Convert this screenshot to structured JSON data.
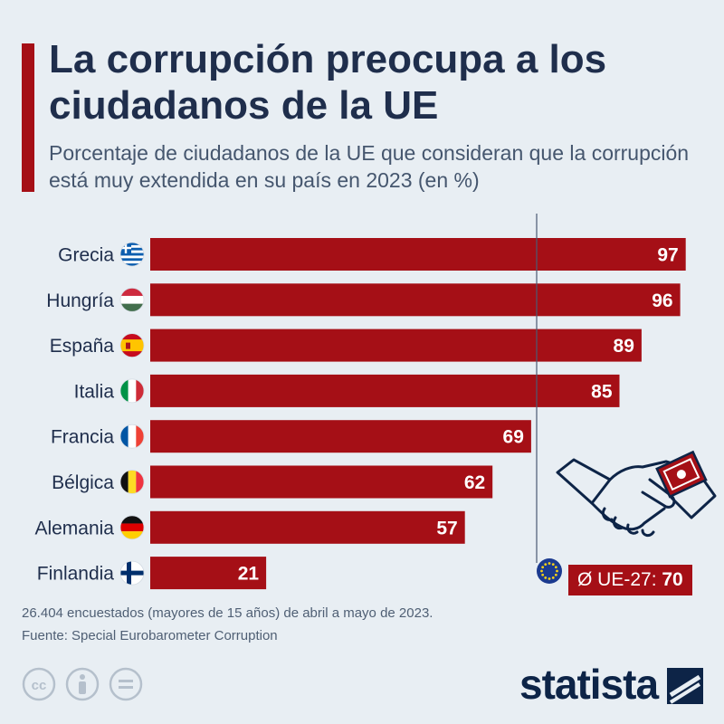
{
  "header": {
    "title": "La corrupción preocupa a los ciudadanos de la UE",
    "subtitle": "Porcentaje de ciudadanos de la UE que consideran que la corrupción está muy extendida en su país en 2023 (en %)"
  },
  "chart_data": {
    "type": "bar",
    "orientation": "horizontal",
    "categories": [
      "Grecia",
      "Hungría",
      "España",
      "Italia",
      "Francia",
      "Bélgica",
      "Alemania",
      "Finlandia"
    ],
    "values": [
      97,
      96,
      89,
      85,
      69,
      62,
      57,
      21
    ],
    "xlim": [
      0,
      100
    ],
    "bar_color": "#a50f16",
    "reference_line": {
      "value": 70,
      "label_prefix": "Ø UE-27:",
      "label_value": "70"
    },
    "flag_icons": [
      "greece-flag-icon",
      "hungary-flag-icon",
      "spain-flag-icon",
      "italy-flag-icon",
      "france-flag-icon",
      "belgium-flag-icon",
      "germany-flag-icon",
      "finland-flag-icon"
    ]
  },
  "footer": {
    "note": "26.404 encuestados (mayores de 15 años) de abril a mayo de 2023.",
    "source": "Fuente: Special Eurobarometer Corruption",
    "brand": "statista"
  },
  "colors": {
    "accent": "#a50f16",
    "background": "#e8eef3",
    "title": "#1f2e4c",
    "reference_line": "#4a5a72"
  },
  "icons": [
    "cc-icon",
    "attribution-icon",
    "no-derivatives-icon",
    "eu-flag-icon",
    "handshake-bribe-icon",
    "statista-logo-icon"
  ]
}
